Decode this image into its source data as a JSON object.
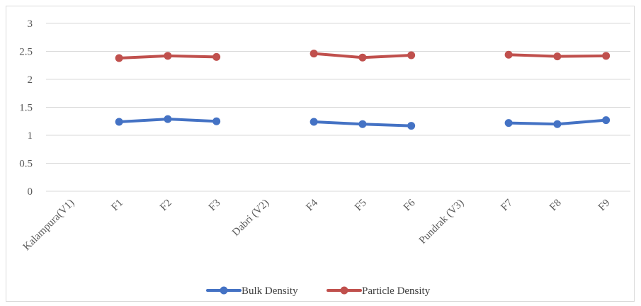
{
  "chart_data": {
    "type": "line",
    "categories": [
      "Kalampura(V1)",
      "F1",
      "F2",
      "F3",
      "Dabri (V2)",
      "F4",
      "F5",
      "F6",
      "Pundrak (V3)",
      "F7",
      "F8",
      "F9"
    ],
    "series": [
      {
        "name": "Bulk Density",
        "color": "#4472C4",
        "values": [
          null,
          1.24,
          1.29,
          1.25,
          null,
          1.24,
          1.2,
          1.17,
          null,
          1.22,
          1.2,
          1.27
        ]
      },
      {
        "name": "Particle Density",
        "color": "#C0504D",
        "values": [
          null,
          2.38,
          2.42,
          2.4,
          null,
          2.46,
          2.39,
          2.43,
          null,
          2.44,
          2.41,
          2.42
        ]
      }
    ],
    "ylim": [
      0,
      3
    ],
    "yticks": [
      0,
      0.5,
      1,
      1.5,
      2,
      2.5,
      3
    ],
    "ytick_labels": [
      "0",
      "0.5",
      "1",
      "1.5",
      "2",
      "2.5",
      "3"
    ],
    "grid": true,
    "legend": "bottom"
  }
}
